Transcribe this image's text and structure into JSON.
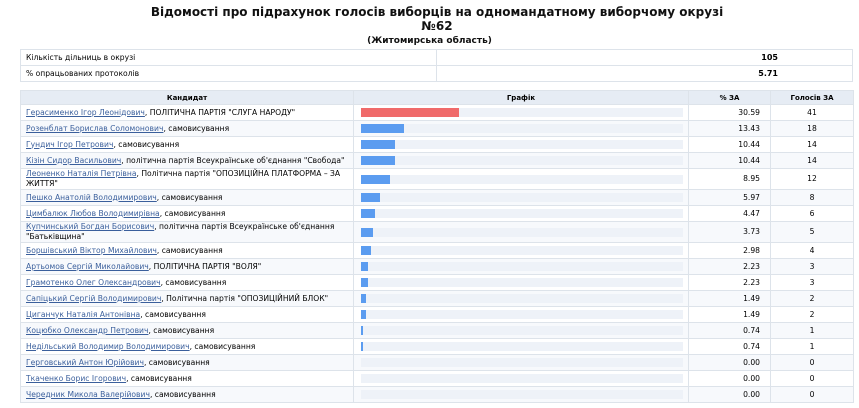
{
  "header": {
    "title": "Відомості про підрахунок голосів виборців на одномандатному виборчому окрузі №62",
    "region": "(Житомирська область)"
  },
  "summary": [
    {
      "label": "Кількість дільниць в окрузі",
      "value": 105
    },
    {
      "label": "% опрацьованих протоколів",
      "value": 5.71
    }
  ],
  "table": {
    "columns": [
      "Кандидат",
      "Графік",
      "% ЗА",
      "Голосів ЗА"
    ],
    "rows": [
      {
        "name": "Герасименко Ігор Леонідович",
        "affiliation": ", ПОЛІТИЧНА ПАРТІЯ \"СЛУГА НАРОДУ\"",
        "percent": 30.59,
        "votes": 41
      },
      {
        "name": "Розенблат Борислав Соломонович",
        "affiliation": ", самовисування",
        "percent": 13.43,
        "votes": 18
      },
      {
        "name": "Гундич Ігор Петрович",
        "affiliation": ", самовисування",
        "percent": 10.44,
        "votes": 14
      },
      {
        "name": "Кізін Сидор Васильович",
        "affiliation": ", політична партія Всеукраїнське об'єднання \"Свобода\"",
        "percent": 10.44,
        "votes": 14
      },
      {
        "name": "Леоненко Наталія Петрівна",
        "affiliation": ", Політична партія \"ОПОЗИЦІЙНА ПЛАТФОРМА – ЗА ЖИТТЯ\"",
        "percent": 8.95,
        "votes": 12
      },
      {
        "name": "Пешко Анатолій Володимирович",
        "affiliation": ", самовисування",
        "percent": 5.97,
        "votes": 8
      },
      {
        "name": "Цимбалюк Любов Володимирівна",
        "affiliation": ", самовисування",
        "percent": 4.47,
        "votes": 6
      },
      {
        "name": "Купчинський Богдан Борисович",
        "affiliation": ", політична партія Всеукраїнське об'єднання \"Батьківщина\"",
        "percent": 3.73,
        "votes": 5
      },
      {
        "name": "Боршівський Віктор Михайлович",
        "affiliation": ", самовисування",
        "percent": 2.98,
        "votes": 4
      },
      {
        "name": "Артьомов Сергій Миколайович",
        "affiliation": ", ПОЛІТИЧНА ПАРТІЯ \"ВОЛЯ\"",
        "percent": 2.23,
        "votes": 3
      },
      {
        "name": "Грамотенко Олег Олександрович",
        "affiliation": ", самовисування",
        "percent": 2.23,
        "votes": 3
      },
      {
        "name": "Сапіцький Сергій Володимирович",
        "affiliation": ", Політична партія \"ОПОЗИЦІЙНИЙ БЛОК\"",
        "percent": 1.49,
        "votes": 2
      },
      {
        "name": "Циганчук Наталія Антонівна",
        "affiliation": ", самовисування",
        "percent": 1.49,
        "votes": 2
      },
      {
        "name": "Коцюбко Олександр Петрович",
        "affiliation": ", самовисування",
        "percent": 0.74,
        "votes": 1
      },
      {
        "name": "Недільський Володимир Володимирович",
        "affiliation": ", самовисування",
        "percent": 0.74,
        "votes": 1
      },
      {
        "name": "Герговський Антон Юрійович",
        "affiliation": ", самовисування",
        "percent": {
          "value": 0,
          "label": "0.00"
        },
        "votes": 0
      },
      {
        "name": "Ткаченко Борис Ігорович",
        "affiliation": ", самовисування",
        "percent": {
          "value": 0,
          "label": "0.00"
        },
        "votes": 0
      },
      {
        "name": "Чередник Микола Валерійович",
        "affiliation": ", самовисування",
        "percent": {
          "value": 0,
          "label": "0.00"
        },
        "votes": 0
      }
    ]
  }
}
